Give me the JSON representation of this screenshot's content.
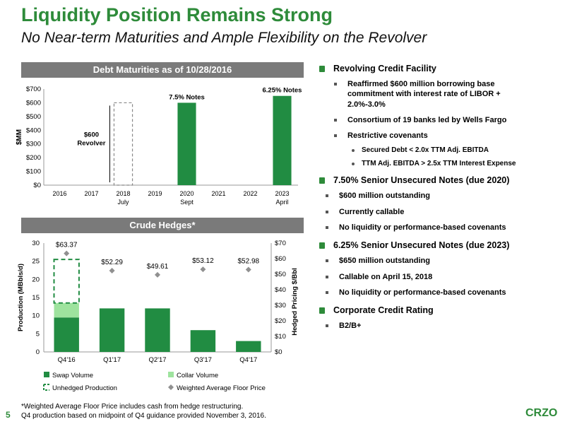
{
  "header": {
    "title": "Liquidity Position Remains Strong",
    "subtitle": "No Near-term Maturities and Ample Flexibility on the Revolver"
  },
  "colors": {
    "brand_green": "#2e8b3a",
    "swap_green": "#218c42",
    "collar_green": "#9ee39e",
    "header_gray": "#7a7a7a",
    "diamond_gray": "#909090"
  },
  "chart_data": [
    {
      "type": "bar",
      "title": "Debt Maturities as of 10/28/2016",
      "categories": [
        "2016",
        "2017",
        "2018",
        "2019",
        "2020",
        "2021",
        "2022",
        "2023"
      ],
      "sublabels": [
        "",
        "",
        "July",
        "",
        "Sept",
        "",
        "",
        "April"
      ],
      "values": [
        0,
        0,
        0,
        0,
        600,
        0,
        0,
        650
      ],
      "ylabel": "$MM",
      "ylim": [
        0,
        700
      ],
      "yticks": [
        0,
        100,
        200,
        300,
        400,
        500,
        600,
        700
      ],
      "ytick_labels": [
        "$0",
        "$100",
        "$200",
        "$300",
        "$400",
        "$500",
        "$600",
        "$700"
      ],
      "bar_labels": [
        "",
        "",
        "",
        "",
        "7.5% Notes",
        "",
        "",
        "6.25% Notes"
      ],
      "revolver": {
        "category": "2018",
        "value": 600,
        "label_line1": "$600",
        "label_line2": "Revolver"
      },
      "grid": false
    },
    {
      "type": "bar",
      "title": "Crude Hedges*",
      "categories": [
        "Q4'16",
        "Q1'17",
        "Q2'17",
        "Q3'17",
        "Q4'17"
      ],
      "series": [
        {
          "name": "Swap Volume",
          "values": [
            9.5,
            12,
            12,
            6,
            3
          ]
        },
        {
          "name": "Collar Volume",
          "values": [
            4,
            0,
            0,
            0,
            0
          ]
        },
        {
          "name": "Unhedged Production",
          "values": [
            12,
            0,
            0,
            0,
            0
          ]
        }
      ],
      "floor_price": {
        "name": "Weighted Average Floor Price",
        "values": [
          63.37,
          52.29,
          49.61,
          53.12,
          52.98
        ],
        "labels": [
          "$63.37",
          "$52.29",
          "$49.61",
          "$53.12",
          "$52.98"
        ]
      },
      "ylabel": "Production (MBbls/d)",
      "y2label": "Hedged Pricing $/Bbl",
      "ylim": [
        0,
        30
      ],
      "y2lim": [
        0,
        70
      ],
      "yticks": [
        0,
        5,
        10,
        15,
        20,
        25,
        30
      ],
      "y2ticks": [
        0,
        10,
        20,
        30,
        40,
        50,
        60,
        70
      ],
      "y2tick_labels": [
        "$0",
        "$10",
        "$20",
        "$30",
        "$40",
        "$50",
        "$60",
        "$70"
      ],
      "legend_placement": "bottom",
      "grid": false
    }
  ],
  "bullets": {
    "revolver": {
      "heading": "Revolving Credit Facility",
      "items": [
        "Reaffirmed $600 million borrowing base commitment with interest rate of LIBOR + 2.0%-3.0%",
        "Consortium of 19 banks led by Wells Fargo",
        "Restrictive covenants"
      ],
      "sub_items": [
        "Secured Debt < 2.0x TTM Adj. EBITDA",
        "TTM Adj. EBITDA > 2.5x TTM Interest Expense"
      ]
    },
    "notes2020": {
      "heading": "7.50% Senior Unsecured Notes (due 2020)",
      "items": [
        "$600 million outstanding",
        "Currently callable",
        "No liquidity or performance-based covenants"
      ]
    },
    "notes2023": {
      "heading": "6.25% Senior Unsecured Notes (due 2023)",
      "items": [
        "$650 million outstanding",
        "Callable on April 15, 2018",
        "No liquidity or performance-based covenants"
      ]
    },
    "rating": {
      "heading": "Corporate Credit Rating",
      "items": [
        "B2/B+"
      ]
    }
  },
  "footer": {
    "footnote1": "*Weighted Average Floor Price includes cash from hedge restructuring.",
    "footnote2": "Q4 production based on midpoint of Q4 guidance provided November 3, 2016.",
    "page_number": "5",
    "logo_text": "CRZO"
  }
}
